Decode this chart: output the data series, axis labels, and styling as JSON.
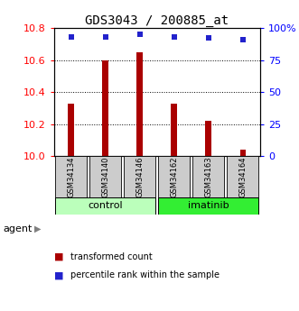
{
  "title": "GDS3043 / 200885_at",
  "samples": [
    "GSM34134",
    "GSM34140",
    "GSM34146",
    "GSM34162",
    "GSM34163",
    "GSM34164"
  ],
  "groups": [
    "control",
    "control",
    "control",
    "imatinib",
    "imatinib",
    "imatinib"
  ],
  "transformed_counts": [
    10.33,
    10.6,
    10.65,
    10.33,
    10.22,
    10.04
  ],
  "percentile_ranks": [
    93,
    93,
    95,
    93,
    92,
    91
  ],
  "ylim_left": [
    10.0,
    10.8
  ],
  "ylim_right": [
    0,
    100
  ],
  "yticks_left": [
    10.0,
    10.2,
    10.4,
    10.6,
    10.8
  ],
  "yticks_right": [
    0,
    25,
    50,
    75,
    100
  ],
  "bar_color": "#AA0000",
  "dot_color": "#2222CC",
  "control_color": "#BBFFBB",
  "imatinib_color": "#33EE33",
  "label_bg_color": "#CCCCCC",
  "legend_red_label": "transformed count",
  "legend_blue_label": "percentile rank within the sample",
  "agent_label": "agent",
  "control_label": "control",
  "imatinib_label": "imatinib",
  "gridline_values": [
    10.2,
    10.4,
    10.6
  ]
}
